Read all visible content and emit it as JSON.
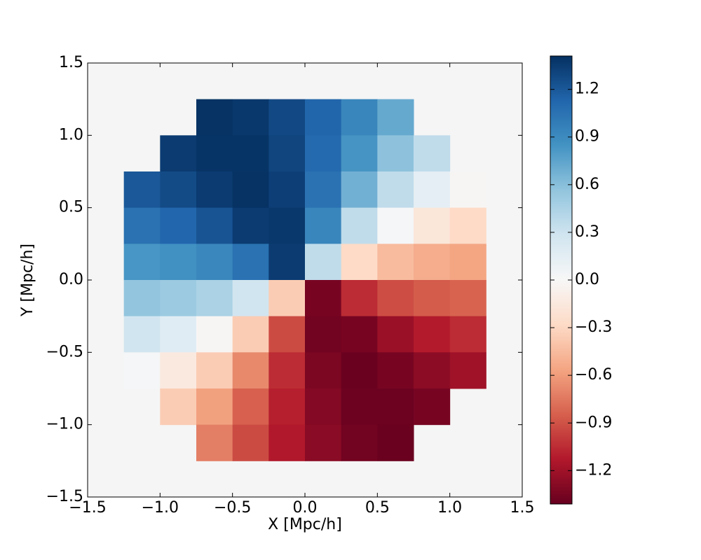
{
  "chart_data": {
    "type": "heatmap",
    "xlabel": "X [Mpc/h]",
    "ylabel": "Y [Mpc/h]",
    "xlim": [
      -1.5,
      1.5
    ],
    "ylim": [
      -1.5,
      1.5
    ],
    "xticks": [
      {
        "value": -1.5,
        "label": "−1.5"
      },
      {
        "value": -1.0,
        "label": "−1.0"
      },
      {
        "value": -0.5,
        "label": "−0.5"
      },
      {
        "value": 0,
        "label": "0.0"
      },
      {
        "value": 0.5,
        "label": "0.5"
      },
      {
        "value": 1.0,
        "label": "1.0"
      },
      {
        "value": 1.5,
        "label": "1.5"
      }
    ],
    "yticks": [
      {
        "value": -1.5,
        "label": "−1.5"
      },
      {
        "value": -1.0,
        "label": "−1.0"
      },
      {
        "value": -0.5,
        "label": "−0.5"
      },
      {
        "value": 0,
        "label": "0.0"
      },
      {
        "value": 0.5,
        "label": "0.5"
      },
      {
        "value": 1.0,
        "label": "1.0"
      },
      {
        "value": 1.5,
        "label": "1.5"
      }
    ],
    "x": [
      -1.125,
      -0.875,
      -0.625,
      -0.375,
      -0.125,
      0.125,
      0.375,
      0.625,
      0.875,
      1.125
    ],
    "y": [
      1.125,
      0.875,
      0.625,
      0.375,
      0.125,
      -0.125,
      -0.375,
      -0.625,
      -0.875,
      -1.125
    ],
    "z": [
      [
        null,
        null,
        1.4,
        1.37,
        1.28,
        1.13,
        0.93,
        0.72,
        null,
        null
      ],
      [
        null,
        1.35,
        1.39,
        1.39,
        1.3,
        1.1,
        0.84,
        0.58,
        0.36,
        null
      ],
      [
        1.2,
        1.27,
        1.35,
        1.4,
        1.33,
        1.05,
        0.68,
        0.36,
        0.14,
        -0.02
      ],
      [
        1.05,
        1.12,
        1.22,
        1.35,
        1.37,
        0.93,
        0.36,
        0.02,
        -0.17,
        -0.28
      ],
      [
        0.83,
        0.86,
        0.92,
        1.05,
        1.35,
        0.36,
        -0.28,
        -0.45,
        -0.52,
        -0.56
      ],
      [
        0.56,
        0.52,
        0.45,
        0.28,
        -0.36,
        -1.35,
        -1.05,
        -0.92,
        -0.86,
        -0.83
      ],
      [
        0.28,
        0.17,
        -0.02,
        -0.36,
        -0.93,
        -1.37,
        -1.35,
        -1.22,
        -1.12,
        -1.05
      ],
      [
        0.02,
        -0.14,
        -0.36,
        -0.68,
        -1.05,
        -1.33,
        -1.4,
        -1.35,
        -1.27,
        -1.2
      ],
      [
        null,
        -0.36,
        -0.58,
        -0.84,
        -1.1,
        -1.3,
        -1.39,
        -1.39,
        -1.35,
        null
      ],
      [
        null,
        null,
        -0.72,
        -0.93,
        -1.13,
        -1.28,
        -1.37,
        -1.4,
        null,
        null
      ]
    ],
    "clim": [
      -1.41,
      1.41
    ],
    "cticks": [
      {
        "value": -1.2,
        "label": "−1.2"
      },
      {
        "value": -0.9,
        "label": "−0.9"
      },
      {
        "value": -0.6,
        "label": "−0.6"
      },
      {
        "value": -0.3,
        "label": "−0.3"
      },
      {
        "value": 0,
        "label": "0.0"
      },
      {
        "value": 0.3,
        "label": "0.3"
      },
      {
        "value": 0.6,
        "label": "0.6"
      },
      {
        "value": 0.9,
        "label": "0.9"
      },
      {
        "value": 1.2,
        "label": "1.2"
      }
    ],
    "colormap": [
      "#67001f",
      "#b2182b",
      "#d6604d",
      "#f4a582",
      "#fddbc7",
      "#f7f7f7",
      "#d1e5f0",
      "#92c5de",
      "#4393c3",
      "#2166ac",
      "#053061"
    ],
    "facecolor": "#f5f5f5"
  }
}
